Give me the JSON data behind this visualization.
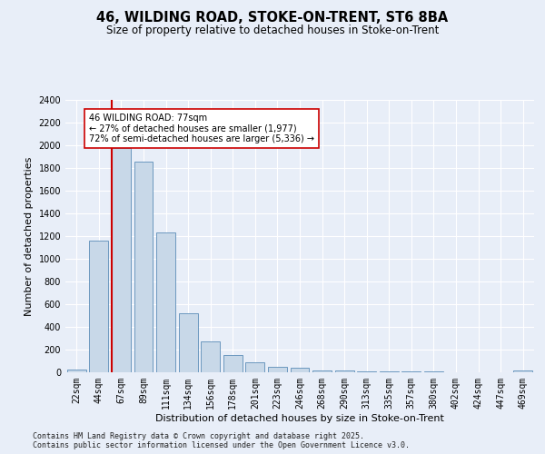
{
  "title1": "46, WILDING ROAD, STOKE-ON-TRENT, ST6 8BA",
  "title2": "Size of property relative to detached houses in Stoke-on-Trent",
  "xlabel": "Distribution of detached houses by size in Stoke-on-Trent",
  "ylabel": "Number of detached properties",
  "bin_labels": [
    "22sqm",
    "44sqm",
    "67sqm",
    "89sqm",
    "111sqm",
    "134sqm",
    "156sqm",
    "178sqm",
    "201sqm",
    "223sqm",
    "246sqm",
    "268sqm",
    "290sqm",
    "313sqm",
    "335sqm",
    "357sqm",
    "380sqm",
    "402sqm",
    "424sqm",
    "447sqm",
    "469sqm"
  ],
  "bar_values": [
    25,
    1160,
    1975,
    1855,
    1230,
    520,
    275,
    155,
    90,
    45,
    40,
    20,
    20,
    5,
    5,
    5,
    5,
    3,
    3,
    2,
    20
  ],
  "bar_color": "#c8d8e8",
  "bar_edge_color": "#5b8db8",
  "vline_color": "#cc0000",
  "annotation_text": "46 WILDING ROAD: 77sqm\n← 27% of detached houses are smaller (1,977)\n72% of semi-detached houses are larger (5,336) →",
  "annotation_box_color": "#ffffff",
  "annotation_box_edge": "#cc0000",
  "ylim": [
    0,
    2400
  ],
  "yticks": [
    0,
    200,
    400,
    600,
    800,
    1000,
    1200,
    1400,
    1600,
    1800,
    2000,
    2200,
    2400
  ],
  "bg_color": "#e8eef8",
  "plot_bg": "#e8eef8",
  "footer1": "Contains HM Land Registry data © Crown copyright and database right 2025.",
  "footer2": "Contains public sector information licensed under the Open Government Licence v3.0.",
  "title1_fontsize": 10.5,
  "title2_fontsize": 8.5,
  "xlabel_fontsize": 8,
  "ylabel_fontsize": 8,
  "tick_fontsize": 7,
  "annotation_fontsize": 7,
  "footer_fontsize": 6
}
